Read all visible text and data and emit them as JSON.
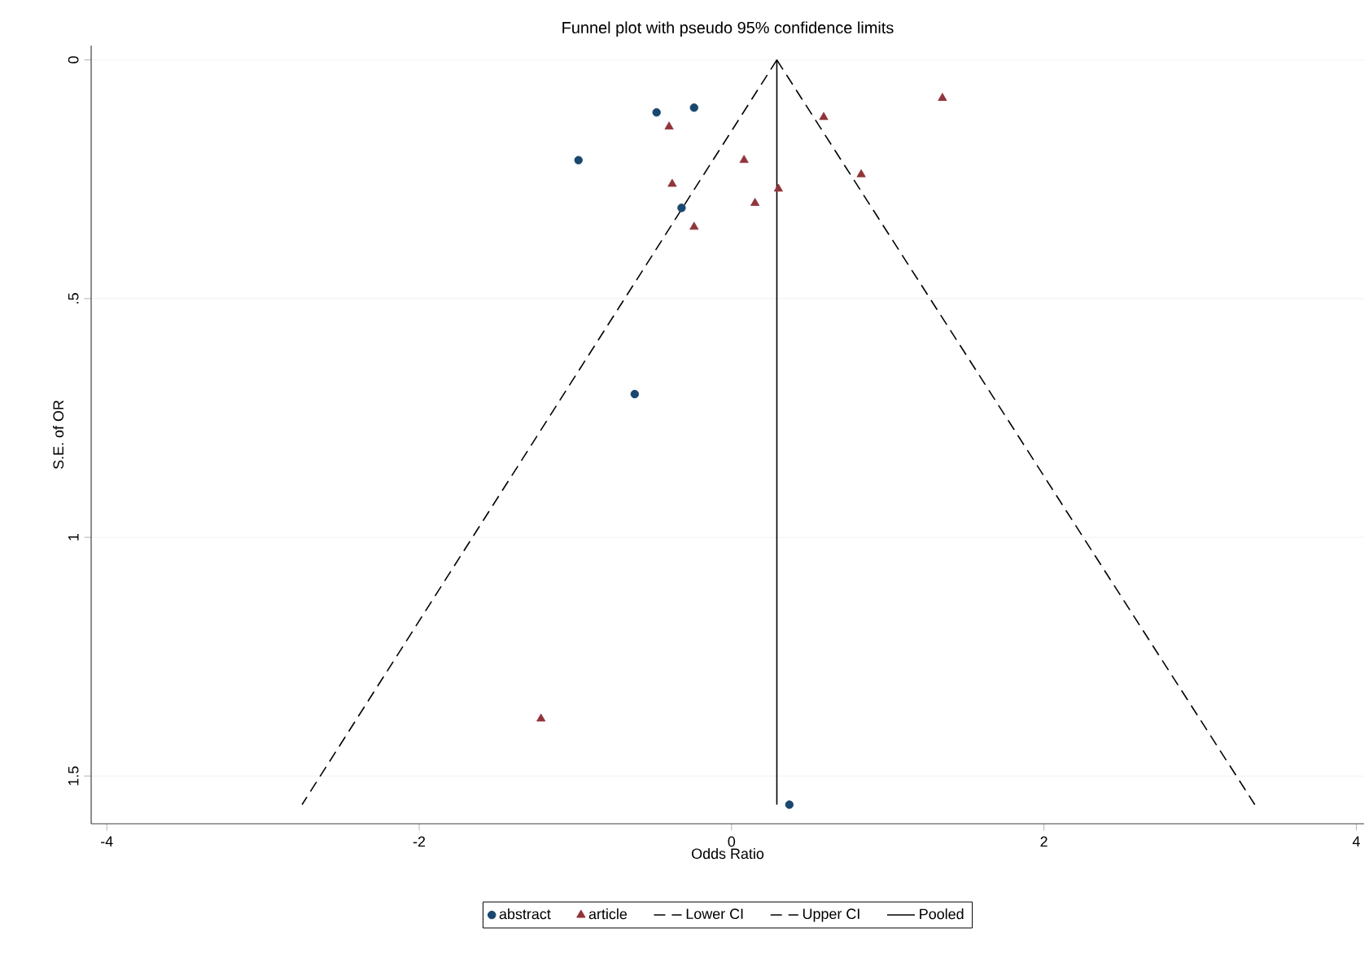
{
  "chart_data": {
    "type": "scatter",
    "title": "Funnel plot with pseudo 95% confidence limits",
    "xlabel": "Odds Ratio",
    "ylabel": "S.E. of OR",
    "xlim": [
      -4.1,
      4.05
    ],
    "xticks": [
      -4,
      -2,
      0,
      2,
      4
    ],
    "ylim": [
      1.6,
      -0.03
    ],
    "yticks": [
      0,
      {
        "value": 0.5,
        "label": ".5"
      },
      1,
      1.5
    ],
    "grid": "y",
    "legend": "bottom",
    "series": [
      {
        "name": "abstract",
        "type": "scatter",
        "marker": "circle",
        "color": "#1a476f",
        "x": [
          -0.48,
          -0.24,
          -0.98,
          -0.32,
          -0.62,
          0.37
        ],
        "values": [
          0.11,
          0.1,
          0.21,
          0.31,
          0.7,
          1.56
        ]
      },
      {
        "name": "article",
        "type": "scatter",
        "marker": "triangle",
        "color": "#90353b",
        "x": [
          -0.4,
          0.08,
          -0.38,
          0.3,
          0.15,
          -0.24,
          0.59,
          0.83,
          1.35,
          -1.22
        ],
        "values": [
          0.14,
          0.21,
          0.26,
          0.27,
          0.3,
          0.35,
          0.12,
          0.24,
          0.08,
          1.38
        ]
      },
      {
        "name": "Lower CI",
        "type": "line",
        "line_style": "dashed",
        "marker": "none",
        "color": "#000000",
        "x": [
          0.29,
          -2.75
        ],
        "values": [
          0,
          1.56
        ]
      },
      {
        "name": "Upper CI",
        "type": "line",
        "line_style": "dashed",
        "marker": "none",
        "color": "#000000",
        "x": [
          0.29,
          3.35
        ],
        "values": [
          0,
          1.56
        ]
      },
      {
        "name": "Pooled",
        "type": "line",
        "line_style": "solid",
        "marker": "none",
        "color": "#000000",
        "x": [
          0.29,
          0.29
        ],
        "values": [
          0,
          1.56
        ]
      }
    ]
  }
}
